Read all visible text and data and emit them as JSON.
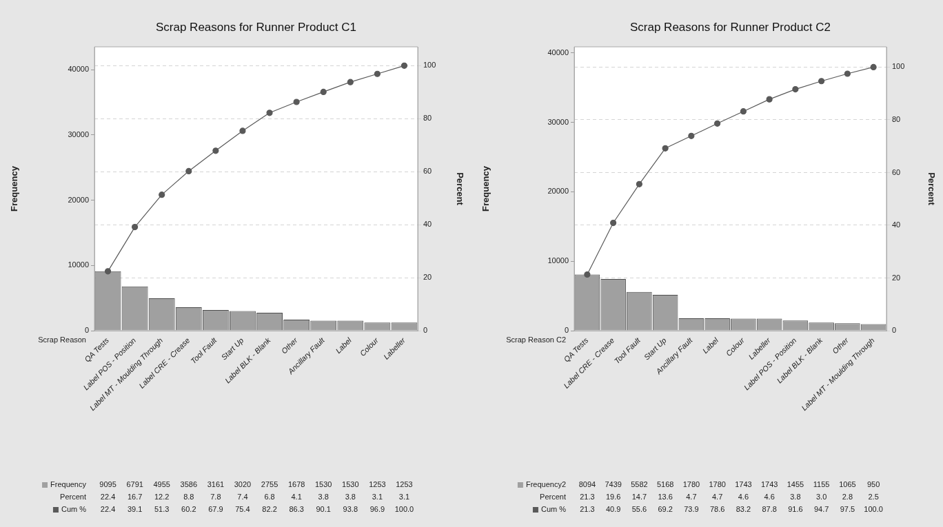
{
  "chart_data": [
    {
      "type": "bar",
      "title": "Scrap Reasons for Runner Product C1",
      "xlabel": "Scrap Reason",
      "ylabel": "Frequency",
      "y2label": "Percent",
      "categories": [
        "QA Tests",
        "Label POS - Position",
        "Label MT - Moulding Through",
        "Label CRE - Crease",
        "Tool Fault",
        "Start Up",
        "Label BLK - Blank",
        "Other",
        "Ancillary Fault",
        "Label",
        "Colour",
        "Labeller"
      ],
      "series": [
        {
          "name": "Frequency",
          "color": "#a0a0a0",
          "values": [
            9095,
            6791,
            4955,
            3586,
            3161,
            3020,
            2755,
            1678,
            1530,
            1530,
            1253,
            1253
          ],
          "value_labels": [
            "9095",
            "6791",
            "4955",
            "3586",
            "3161",
            "3020",
            "2755",
            "1678",
            "1530",
            "1530",
            "1253",
            "1253"
          ]
        },
        {
          "name": "Cum %",
          "type": "line",
          "axis": "y2",
          "color": "#595959",
          "values": [
            22.4,
            39.1,
            51.3,
            60.2,
            67.9,
            75.4,
            82.2,
            86.3,
            90.1,
            93.8,
            96.9,
            100.0
          ],
          "value_labels": [
            "22.4",
            "39.1",
            "51.3",
            "60.2",
            "67.9",
            "75.4",
            "82.2",
            "86.3",
            "90.1",
            "93.8",
            "96.9",
            "100.0"
          ]
        }
      ],
      "ylim": [
        0,
        43500
      ],
      "yticks": [
        0,
        10000,
        20000,
        30000,
        40000
      ],
      "y2lim": [
        0,
        107.1
      ],
      "y2ticks": [
        0,
        20,
        40,
        60,
        80,
        100
      ],
      "grid": "y",
      "legend": "bottom left",
      "marker": "circle",
      "annotations": [
        "Percent",
        "22.4",
        "16.7",
        "12.2",
        "8.8",
        "7.8",
        "7.4",
        "6.8",
        "4.1",
        "3.8",
        "3.8",
        "3.1",
        "3.1"
      ]
    },
    {
      "type": "bar",
      "title": "Scrap Reasons for Runner Product C2",
      "xlabel": "Scrap Reason C2",
      "ylabel": "Frequency",
      "y2label": "Percent",
      "categories": [
        "QA Tests",
        "Label CRE - Crease",
        "Tool Fault",
        "Start Up",
        "Ancillary Fault",
        "Label",
        "Colour",
        "Labeller",
        "Label POS - Position",
        "Label BLK - Blank",
        "Other",
        "Label MT - Moulding Through"
      ],
      "series": [
        {
          "name": "Frequency2",
          "color": "#a0a0a0",
          "values": [
            8094,
            7439,
            5582,
            5168,
            1780,
            1780,
            1743,
            1743,
            1455,
            1155,
            1065,
            950
          ],
          "value_labels": [
            "8094",
            "7439",
            "5582",
            "5168",
            "1780",
            "1780",
            "1743",
            "1743",
            "1455",
            "1155",
            "1065",
            "950"
          ]
        },
        {
          "name": "Cum %",
          "type": "line",
          "axis": "y2",
          "color": "#595959",
          "values": [
            21.3,
            40.9,
            55.6,
            69.2,
            73.9,
            78.6,
            83.2,
            87.8,
            91.6,
            94.7,
            97.5,
            100.0
          ],
          "value_labels": [
            "21.3",
            "40.9",
            "55.6",
            "69.2",
            "73.9",
            "78.6",
            "83.2",
            "87.8",
            "91.6",
            "94.7",
            "97.5",
            "100.0"
          ]
        }
      ],
      "ylim": [
        0,
        40880
      ],
      "yticks": [
        0,
        10000,
        20000,
        30000,
        40000
      ],
      "y2lim": [
        0,
        107.7
      ],
      "y2ticks": [
        0,
        20,
        40,
        60,
        80,
        100
      ],
      "grid": "y",
      "legend": "bottom left",
      "marker": "circle",
      "annotations": [
        "Percent",
        "21.3",
        "19.6",
        "14.7",
        "13.6",
        "4.7",
        "4.7",
        "4.6",
        "4.6",
        "3.8",
        "3.0",
        "2.8",
        "2.5"
      ]
    }
  ]
}
